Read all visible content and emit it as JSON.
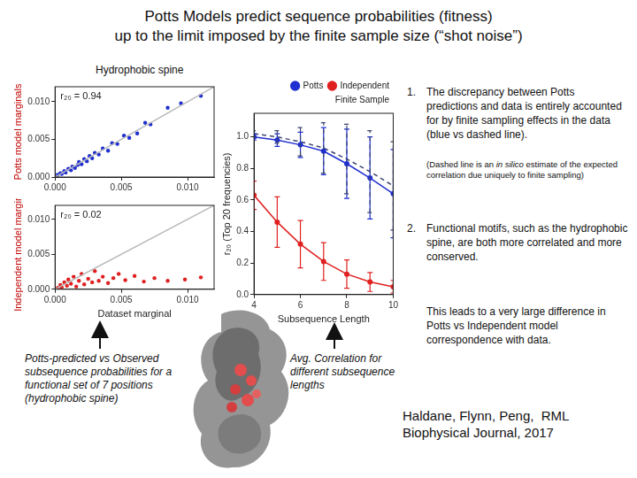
{
  "title": [
    "Potts Models predict sequence probabilities (fitness)",
    "up to the limit imposed by the finite sample size (“shot noise”)"
  ],
  "panel_label": "Hydrophobic spine",
  "points": [
    {
      "number": "1.",
      "text": "The discrepancy between Potts predictions and data is entirely accounted for by finite sampling effects in the data (blue vs dashed line)."
    },
    {
      "parts": [
        {
          "text": "(Dashed line is an "
        },
        {
          "text": "in silico",
          "style": "italic"
        },
        {
          "text": " estimate of the expected correlation due uniquely to finite sampling)"
        }
      ]
    },
    {
      "number": "2.",
      "text": "Functional motifs, such as the hydrophobic spine, are both more correlated and more conserved."
    },
    {
      "text": "This leads to a very large difference in Potts vs Independent model correspondence with data."
    }
  ],
  "captions": [
    "Potts-predicted vs Observed subsequence probabilities for a functional set of 7 positions (hydrophobic spine)",
    "Avg. Correlation for different subsequence lengths"
  ],
  "citation": [
    "Haldane, Flynn, Peng,  RML",
    "Biophysical Journal, 2017"
  ],
  "chart_data": [
    {
      "type": "scatter",
      "ylabel": "Potts model marginals",
      "annotation": "r₂₀ = 0.94",
      "xlim": [
        0,
        0.012
      ],
      "ylim": [
        0,
        0.012
      ],
      "xticks": [
        {
          "value": 0,
          "label": "0.000"
        },
        {
          "value": 0.005,
          "label": "0.005"
        },
        {
          "value": 0.01,
          "label": "0.010"
        }
      ],
      "yticks": [
        {
          "value": 0,
          "label": "0.000"
        },
        {
          "value": 0.005,
          "label": "0.005"
        },
        {
          "value": 0.01,
          "label": "0.010"
        }
      ],
      "grid": false,
      "series": [
        {
          "type": "line",
          "color": "#b8b8b8",
          "marker": "none",
          "x": [
            0,
            0.012
          ],
          "values": [
            0,
            0.012
          ]
        },
        {
          "color": "#1f2fd0",
          "marker": "circle",
          "x": [
            0.0002,
            0.0004,
            0.0005,
            0.0007,
            0.0008,
            0.001,
            0.0012,
            0.0013,
            0.0015,
            0.0017,
            0.0018,
            0.002,
            0.0022,
            0.0024,
            0.0026,
            0.0028,
            0.003,
            0.0033,
            0.0036,
            0.004,
            0.0043,
            0.0047,
            0.0052,
            0.0056,
            0.0062,
            0.0068,
            0.0072,
            0.0085,
            0.0095,
            0.011
          ],
          "values": [
            0.0003,
            0.0005,
            0.0004,
            0.0008,
            0.0006,
            0.0011,
            0.0009,
            0.0014,
            0.0012,
            0.0016,
            0.002,
            0.0017,
            0.0024,
            0.0021,
            0.0028,
            0.0025,
            0.0032,
            0.003,
            0.0038,
            0.0035,
            0.0045,
            0.0044,
            0.0055,
            0.0052,
            0.0058,
            0.0072,
            0.007,
            0.0092,
            0.0098,
            0.0108
          ]
        }
      ]
    },
    {
      "type": "scatter",
      "ylabel": "Independent model marginals",
      "xlabel": "Dataset marginal",
      "annotation": "r₂₀ = 0.02",
      "xlim": [
        0,
        0.012
      ],
      "ylim": [
        0,
        0.012
      ],
      "xticks": [
        {
          "value": 0,
          "label": "0.000"
        },
        {
          "value": 0.005,
          "label": "0.005"
        },
        {
          "value": 0.01,
          "label": "0.010"
        }
      ],
      "yticks": [
        {
          "value": 0,
          "label": "0.000"
        },
        {
          "value": 0.005,
          "label": "0.005"
        },
        {
          "value": 0.01,
          "label": "0.010"
        }
      ],
      "grid": false,
      "series": [
        {
          "type": "line",
          "color": "#b8b8b8",
          "marker": "none",
          "x": [
            0,
            0.012
          ],
          "values": [
            0,
            0.012
          ]
        },
        {
          "color": "#e02020",
          "marker": "circle",
          "x": [
            0.0002,
            0.0004,
            0.0005,
            0.0007,
            0.0009,
            0.001,
            0.0012,
            0.0014,
            0.0016,
            0.0018,
            0.002,
            0.0022,
            0.0025,
            0.0028,
            0.003,
            0.0033,
            0.0036,
            0.004,
            0.0044,
            0.0048,
            0.0053,
            0.006,
            0.0067,
            0.0075,
            0.0085,
            0.0098,
            0.011
          ],
          "values": [
            0.0002,
            0.0006,
            0.0003,
            0.001,
            0.0005,
            0.0014,
            0.0008,
            0.0018,
            0.0004,
            0.0012,
            0.0022,
            0.0007,
            0.0015,
            0.001,
            0.0026,
            0.0012,
            0.0018,
            0.0009,
            0.0016,
            0.0022,
            0.0013,
            0.0019,
            0.0011,
            0.0016,
            0.0012,
            0.0014,
            0.0017
          ]
        }
      ]
    },
    {
      "type": "line",
      "xlabel": "Subsequence Length",
      "ylabel": "r₂₀ (Top 20 frequencies)",
      "xlim": [
        4,
        10
      ],
      "ylim": [
        0,
        1.15
      ],
      "xticks": [
        4,
        6,
        8,
        10
      ],
      "yticks": [
        {
          "value": 0,
          "label": "0.0"
        },
        {
          "value": 0.2,
          "label": "0.2"
        },
        {
          "value": 0.4,
          "label": "0.4"
        },
        {
          "value": 0.6,
          "label": "0.6"
        },
        {
          "value": 0.8,
          "label": "0.8"
        },
        {
          "value": 1,
          "label": "1.0"
        }
      ],
      "grid": false,
      "legend": "top",
      "x": [
        4,
        5,
        6,
        7,
        8,
        9,
        10
      ],
      "series": [
        {
          "name": "Potts",
          "color": "#1f2fd0",
          "marker": "circle",
          "line_style": "solid",
          "values": [
            1.0,
            0.98,
            0.95,
            0.91,
            0.83,
            0.74,
            0.64
          ],
          "errors": [
            0.02,
            0.04,
            0.08,
            0.15,
            0.22,
            0.26,
            0.28
          ]
        },
        {
          "name": "Independent",
          "color": "#e02020",
          "marker": "circle",
          "line_style": "solid",
          "values": [
            0.63,
            0.46,
            0.32,
            0.21,
            0.13,
            0.08,
            0.05
          ],
          "errors": [
            0.09,
            0.16,
            0.15,
            0.12,
            0.09,
            0.06,
            0.04
          ]
        },
        {
          "name": "Finite Sample",
          "color": "#3c4670",
          "marker": "none",
          "line_style": "dashed",
          "values": [
            1.02,
            1.0,
            0.97,
            0.93,
            0.86,
            0.78,
            0.69
          ],
          "errors": [
            0.02,
            0.04,
            0.09,
            0.16,
            0.22,
            0.26,
            0.28
          ]
        }
      ]
    }
  ]
}
